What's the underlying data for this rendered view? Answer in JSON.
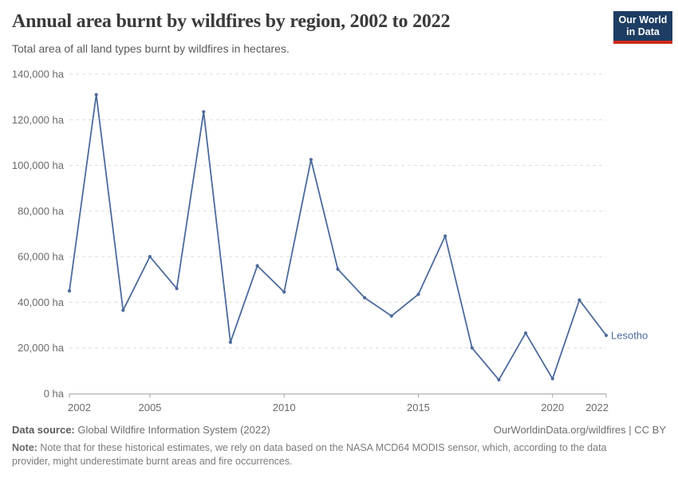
{
  "header": {
    "title": "Annual area burnt by wildfires by region, 2002 to 2022",
    "subtitle": "Total area of all land types burnt by wildfires in hectares.",
    "logo": {
      "line1": "Our World",
      "line2": "in Data",
      "bg_color": "#1d3d63",
      "accent_color": "#cc2a1d"
    }
  },
  "chart_data": {
    "type": "line",
    "title": "Annual area burnt by wildfires by region, 2002 to 2022",
    "xlabel": "",
    "ylabel": "",
    "x": [
      2002,
      2003,
      2004,
      2005,
      2006,
      2007,
      2008,
      2009,
      2010,
      2011,
      2012,
      2013,
      2014,
      2015,
      2016,
      2017,
      2018,
      2019,
      2020,
      2021,
      2022
    ],
    "series": [
      {
        "name": "Lesotho",
        "color": "#4c6a9c",
        "values": [
          45000,
          131000,
          36500,
          60000,
          46000,
          123500,
          22500,
          56000,
          44500,
          102500,
          54500,
          42000,
          34000,
          43500,
          69000,
          20000,
          6000,
          26500,
          6500,
          41000,
          25500
        ]
      }
    ],
    "ylim": [
      0,
      140000
    ],
    "ytick_step": 20000,
    "ytick_suffix": " ha",
    "xticks": [
      2002,
      2005,
      2010,
      2015,
      2020,
      2022
    ],
    "grid": "horizontal-dashed",
    "legend_position": "end-of-line",
    "colors": {
      "gridline": "#dcdcdc",
      "axis": "#a3a3a3",
      "tick_label": "#6b6b6b"
    }
  },
  "footer": {
    "datasource_label": "Data source:",
    "datasource_value": " Global Wildfire Information System (2022)",
    "link": "OurWorldinData.org/wildfires | CC BY",
    "note_label": "Note:",
    "note_value": " Note that for these historical estimates, we rely on data based on the NASA MCD64 MODIS sensor, which, according to the data provider, might underestimate burnt areas and fire occurrences."
  }
}
